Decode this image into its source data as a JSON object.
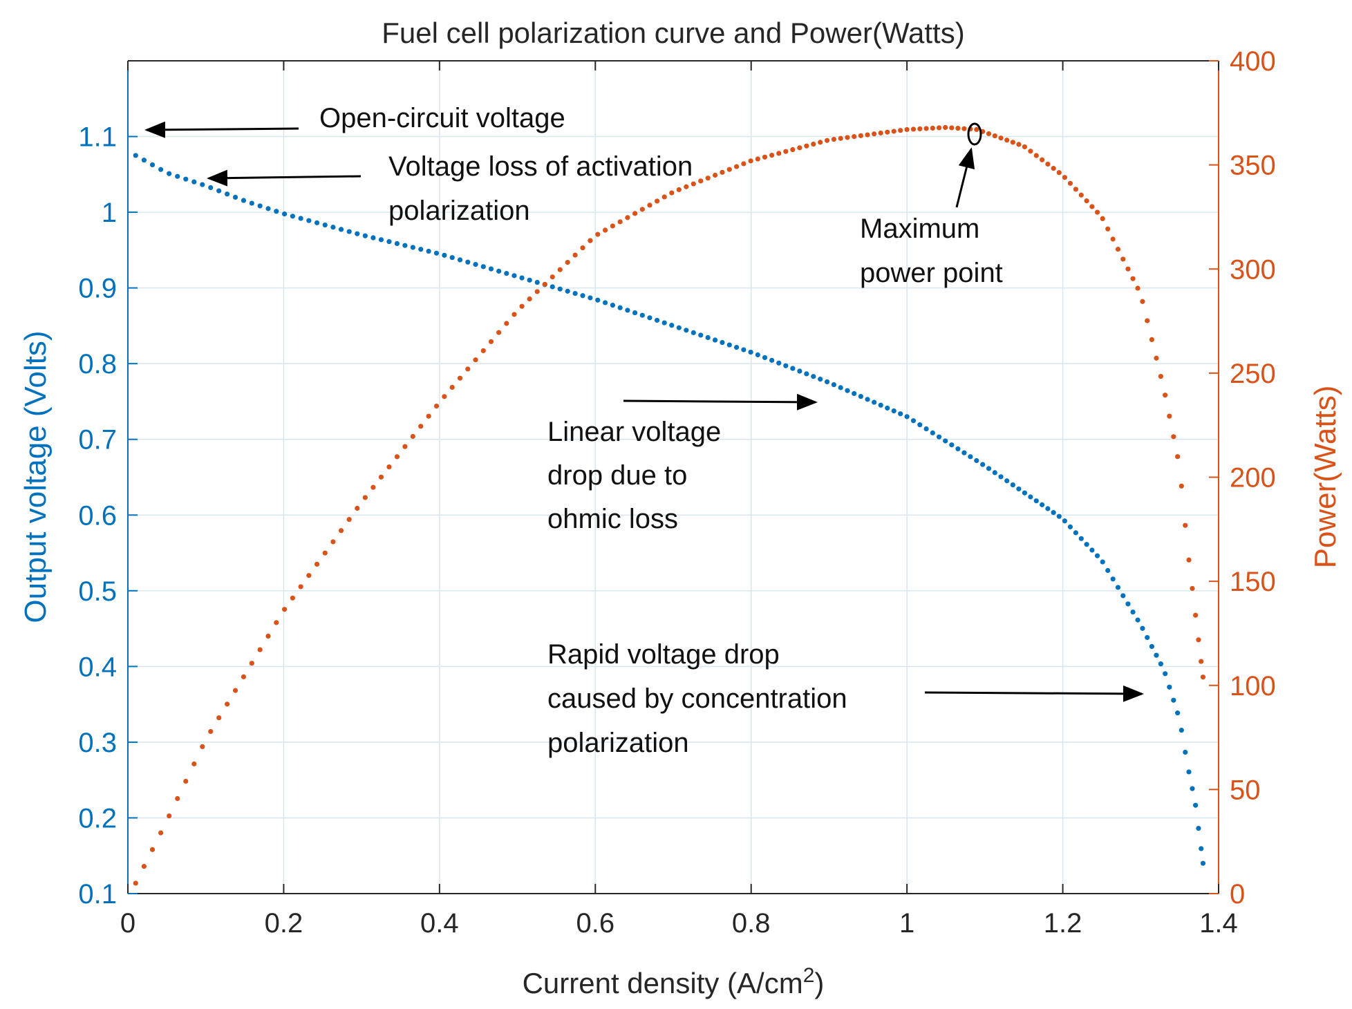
{
  "chart_data": {
    "type": "scatter",
    "title": "Fuel cell polarization curve and Power(Watts)",
    "xlabel": "Current density (A/cm",
    "xlabel_sup": "2",
    "xlabel_close": ")",
    "ylabel_left": "Output voltage (Volts)",
    "ylabel_right": "Power(Watts)",
    "xlim": [
      0,
      1.4
    ],
    "ylim_left": [
      0.1,
      1.2
    ],
    "ylim_right": [
      0,
      400
    ],
    "x_ticks": [
      0,
      0.2,
      0.4,
      0.6,
      0.8,
      1,
      1.2,
      1.4
    ],
    "x_tick_labels": [
      "0",
      "0.2",
      "0.4",
      "0.6",
      "0.8",
      "1",
      "1.2",
      "1.4"
    ],
    "y_left_ticks": [
      0.1,
      0.2,
      0.3,
      0.4,
      0.5,
      0.6,
      0.7,
      0.8,
      0.9,
      1,
      1.1
    ],
    "y_left_tick_labels": [
      "0.1",
      "0.2",
      "0.3",
      "0.4",
      "0.5",
      "0.6",
      "0.7",
      "0.8",
      "0.9",
      "1",
      "1.1"
    ],
    "y_right_ticks": [
      0,
      50,
      100,
      150,
      200,
      250,
      300,
      350,
      400
    ],
    "y_right_tick_labels": [
      "0",
      "50",
      "100",
      "150",
      "200",
      "250",
      "300",
      "350",
      "400"
    ],
    "grid": true,
    "colors": {
      "voltage": "#0072BD",
      "power": "#D95319",
      "grid": "#d8e6ee",
      "axis": "#262626"
    },
    "series": [
      {
        "name": "Output voltage",
        "axis": "left",
        "color": "#0072BD",
        "points": [
          [
            0.01,
            1.075
          ],
          [
            0.05,
            1.052
          ],
          [
            0.1,
            1.035
          ],
          [
            0.15,
            1.015
          ],
          [
            0.2,
            0.998
          ],
          [
            0.3,
            0.97
          ],
          [
            0.4,
            0.945
          ],
          [
            0.5,
            0.915
          ],
          [
            0.6,
            0.885
          ],
          [
            0.7,
            0.85
          ],
          [
            0.8,
            0.815
          ],
          [
            0.9,
            0.775
          ],
          [
            1.0,
            0.73
          ],
          [
            1.1,
            0.665
          ],
          [
            1.2,
            0.595
          ],
          [
            1.25,
            0.54
          ],
          [
            1.3,
            0.455
          ],
          [
            1.33,
            0.395
          ],
          [
            1.35,
            0.33
          ],
          [
            1.36,
            0.27
          ],
          [
            1.37,
            0.22
          ],
          [
            1.38,
            0.14
          ]
        ]
      },
      {
        "name": "Power",
        "axis": "right",
        "color": "#D95319",
        "points": [
          [
            0.01,
            5
          ],
          [
            0.05,
            35
          ],
          [
            0.1,
            74
          ],
          [
            0.2,
            136
          ],
          [
            0.3,
            188
          ],
          [
            0.4,
            236
          ],
          [
            0.5,
            280
          ],
          [
            0.6,
            316
          ],
          [
            0.7,
            337
          ],
          [
            0.8,
            352
          ],
          [
            0.9,
            362
          ],
          [
            1.0,
            367
          ],
          [
            1.05,
            368
          ],
          [
            1.09,
            367
          ],
          [
            1.15,
            359
          ],
          [
            1.2,
            345
          ],
          [
            1.25,
            325
          ],
          [
            1.3,
            288
          ],
          [
            1.33,
            242
          ],
          [
            1.35,
            205
          ],
          [
            1.36,
            166
          ],
          [
            1.38,
            104
          ]
        ]
      }
    ],
    "annotations": [
      {
        "id": "ocv",
        "lines": [
          "Open-circuit voltage"
        ]
      },
      {
        "id": "activation",
        "lines": [
          "Voltage loss of activation",
          "polarization"
        ]
      },
      {
        "id": "mpp",
        "lines": [
          "Maximum",
          "power point"
        ]
      },
      {
        "id": "ohmic",
        "lines": [
          "Linear voltage",
          "drop due to",
          "ohmic loss"
        ]
      },
      {
        "id": "concentration",
        "lines": [
          "Rapid voltage drop",
          "caused by concentration",
          "polarization"
        ]
      }
    ]
  }
}
